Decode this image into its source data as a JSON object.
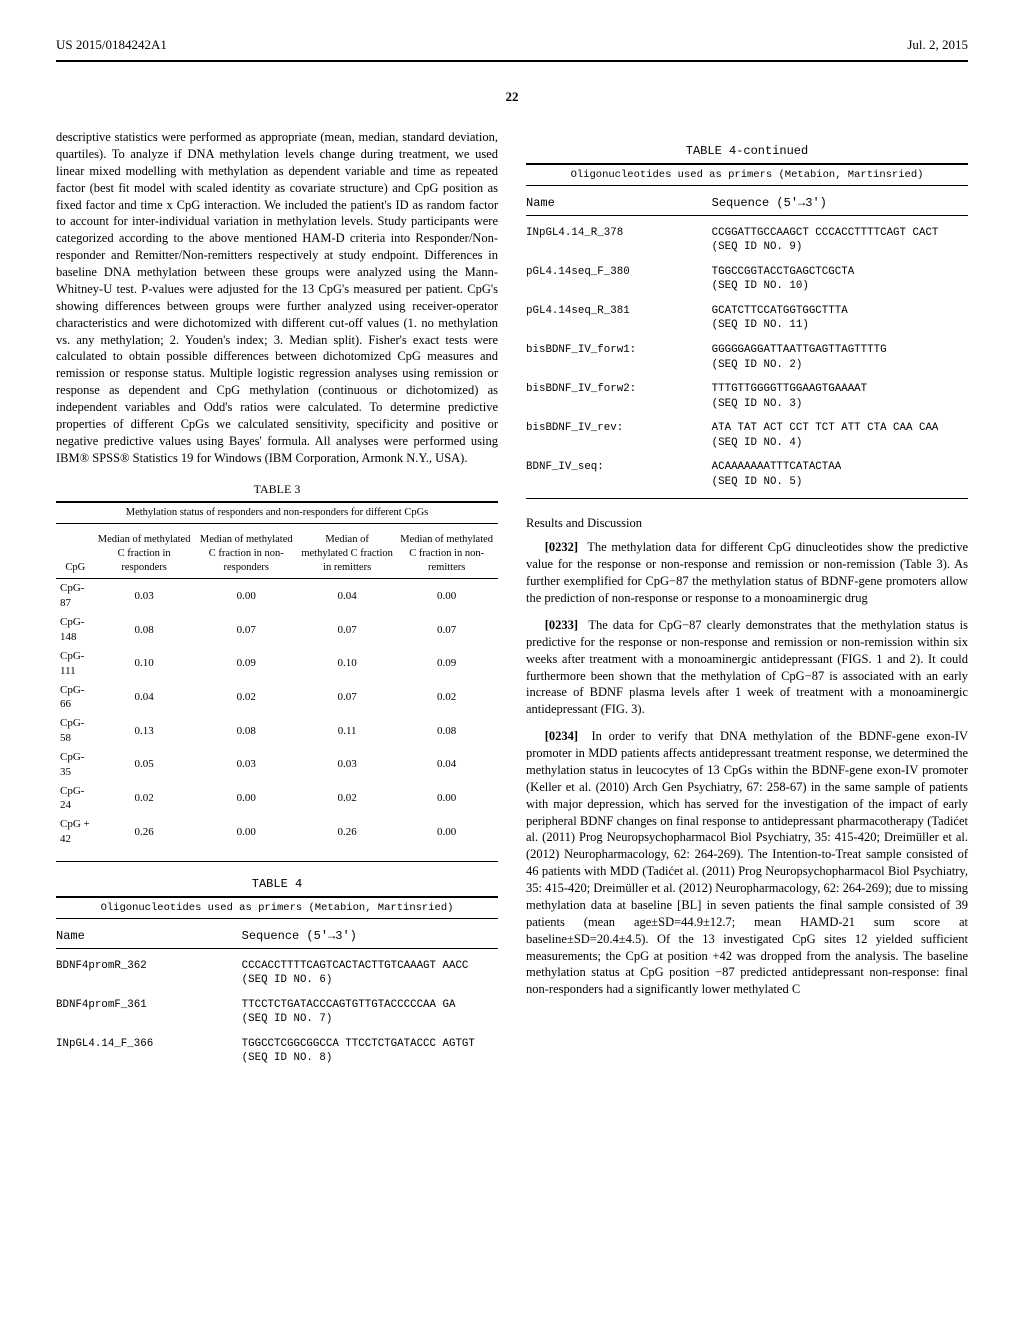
{
  "header": {
    "left": "US 2015/0184242A1",
    "right": "Jul. 2, 2015"
  },
  "page_number": "22",
  "left_column": {
    "para1": "descriptive statistics were performed as appropriate (mean, median, standard deviation, quartiles). To analyze if DNA methylation levels change during treatment, we used linear mixed modelling with methylation as dependent variable and time as repeated factor (best fit model with scaled identity as covariate structure) and CpG position as fixed factor and time x CpG interaction. We included the patient's ID as random factor to account for inter-individual variation in methylation levels. Study participants were categorized according to the above mentioned HAM-D criteria into Responder/Non-responder and Remitter/Non-remitters respectively at study endpoint. Differences in baseline DNA methylation between these groups were analyzed using the Mann-Whitney-U test. P-values were adjusted for the 13 CpG's measured per patient. CpG's showing differences between groups were further analyzed using receiver-operator characteristics and were dichotomized with different cut-off values (1. no methylation vs. any methylation; 2. Youden's index; 3. Median split). Fisher's exact tests were calculated to obtain possible differences between dichotomized CpG measures and remission or response status. Multiple logistic regression analyses using remission or response as dependent and CpG methylation (continuous or dichotomized) as independent variables and Odd's ratios were calculated. To determine predictive properties of different CpGs we calculated sensitivity, specificity and positive or negative predictive values using Bayes' formula. All analyses were performed using IBM® SPSS® Statistics 19 for Windows (IBM Corporation, Armonk N.Y., USA).",
    "table3": {
      "caption": "TABLE 3",
      "subcaption": "Methylation status of responders and non-responders for different CpGs",
      "columns": [
        "CpG",
        "Median of methylated C fraction in responders",
        "Median of methylated C fraction in non-responders",
        "Median of methylated C fraction in remitters",
        "Median of methylated C fraction in non-remitters"
      ],
      "rows": [
        [
          "CpG-87",
          "0.03",
          "0.00",
          "0.04",
          "0.00"
        ],
        [
          "CpG-148",
          "0.08",
          "0.07",
          "0.07",
          "0.07"
        ],
        [
          "CpG-111",
          "0.10",
          "0.09",
          "0.10",
          "0.09"
        ],
        [
          "CpG-66",
          "0.04",
          "0.02",
          "0.07",
          "0.02"
        ],
        [
          "CpG-58",
          "0.13",
          "0.08",
          "0.11",
          "0.08"
        ],
        [
          "CpG-35",
          "0.05",
          "0.03",
          "0.03",
          "0.04"
        ],
        [
          "CpG-24",
          "0.02",
          "0.00",
          "0.02",
          "0.00"
        ],
        [
          "CpG + 42",
          "0.26",
          "0.00",
          "0.26",
          "0.00"
        ]
      ]
    },
    "table4": {
      "caption": "TABLE 4",
      "subcaption": "Oligonucleotides used as primers (Metabion, Martinsried)",
      "head_name": "Name",
      "head_seq": "Sequence (5'→3')",
      "rows": [
        {
          "name": "BDNF4promR_362",
          "seq": "CCCACCTTTTCAGTCACTACTTGTCAAAGT AACC",
          "seqid": "(SEQ ID NO. 6)"
        },
        {
          "name": "BDNF4promF_361",
          "seq": "TTCCTCTGATACCCAGTGTTGTACCCCCAA GA",
          "seqid": "(SEQ ID NO. 7)"
        },
        {
          "name": "INpGL4.14_F_366",
          "seq": "TGGCCTCGGCGGCCA TTCCTCTGATACCC AGTGT",
          "seqid": "(SEQ ID NO. 8)"
        }
      ]
    }
  },
  "right_column": {
    "table4c": {
      "caption": "TABLE 4-continued",
      "subcaption": "Oligonucleotides used as primers (Metabion, Martinsried)",
      "head_name": "Name",
      "head_seq": "Sequence (5'→3')",
      "rows": [
        {
          "name": "INpGL4.14_R_378",
          "seq": "CCGGATTGCCAAGCT CCCACCTTTTCAGT CACT",
          "seqid": "(SEQ ID NO. 9)"
        },
        {
          "name": "pGL4.14seq_F_380",
          "seq": "TGGCCGGTACCTGAGCTCGCTA",
          "seqid": "(SEQ ID NO. 10)"
        },
        {
          "name": "pGL4.14seq_R_381",
          "seq": "GCATCTTCCATGGTGGCTTTA",
          "seqid": "(SEQ ID NO. 11)"
        },
        {
          "name": "bisBDNF_IV_forw1:",
          "seq": "GGGGGAGGATTAATTGAGTTAGTTTTG",
          "seqid": "(SEQ ID NO. 2)"
        },
        {
          "name": "bisBDNF_IV_forw2:",
          "seq": "TTTGTTGGGGTTGGAAGTGAAAAT",
          "seqid": "(SEQ ID NO. 3)"
        },
        {
          "name": "bisBDNF_IV_rev:",
          "seq": "ATA TAT ACT CCT TCT ATT CTA CAA CAA",
          "seqid": "(SEQ ID NO. 4)"
        },
        {
          "name": "BDNF_IV_seq:",
          "seq": "ACAAAAAAATTTCATACTAA",
          "seqid": "(SEQ ID NO. 5)"
        }
      ]
    },
    "section_head": "Results and Discussion",
    "para0232_label": "[0232]",
    "para0232": "The methylation data for different CpG dinucleotides show the predictive value for the response or non-response and remission or non-remission (Table 3). As further exemplified for CpG−87 the methylation status of BDNF-gene promoters allow the prediction of non-response or response to a monoaminergic drug",
    "para0233_label": "[0233]",
    "para0233": "The data for CpG−87 clearly demonstrates that the methylation status is predictive for the response or non-response and remission or non-remission within six weeks after treatment with a monoaminergic antidepressant (FIGS. 1 and 2). It could furthermore been shown that the methylation of CpG−87 is associated with an early increase of BDNF plasma levels after 1 week of treatment with a monoaminergic antidepressant (FIG. 3).",
    "para0234_label": "[0234]",
    "para0234": "In order to verify that DNA methylation of the BDNF-gene exon-IV promoter in MDD patients affects antidepressant treatment response, we determined the methylation status in leucocytes of 13 CpGs within the BDNF-gene exon-IV promoter (Keller et al. (2010) Arch Gen Psychiatry, 67: 258-67) in the same sample of patients with major depression, which has served for the investigation of the impact of early peripheral BDNF changes on final response to antidepressant pharmacotherapy (Tadićet al. (2011) Prog Neuropsychopharmacol Biol Psychiatry, 35: 415-420; Dreimüller et al. (2012) Neuropharmacology, 62: 264-269). The Intention-to-Treat sample consisted of 46 patients with MDD (Tadićet al. (2011) Prog Neuropsychopharmacol Biol Psychiatry, 35: 415-420; Dreimüller et al. (2012) Neuropharmacology, 62: 264-269); due to missing methylation data at baseline [BL] in seven patients the final sample consisted of 39 patients (mean age±SD=44.9±12.7; mean HAMD-21 sum score at baseline±SD=20.4±4.5). Of the 13 investigated CpG sites 12 yielded sufficient measurements; the CpG at position +42 was dropped from the analysis. The baseline methylation status at CpG position −87 predicted antidepressant non-response: final non-responders had a significantly lower methylated C"
  }
}
